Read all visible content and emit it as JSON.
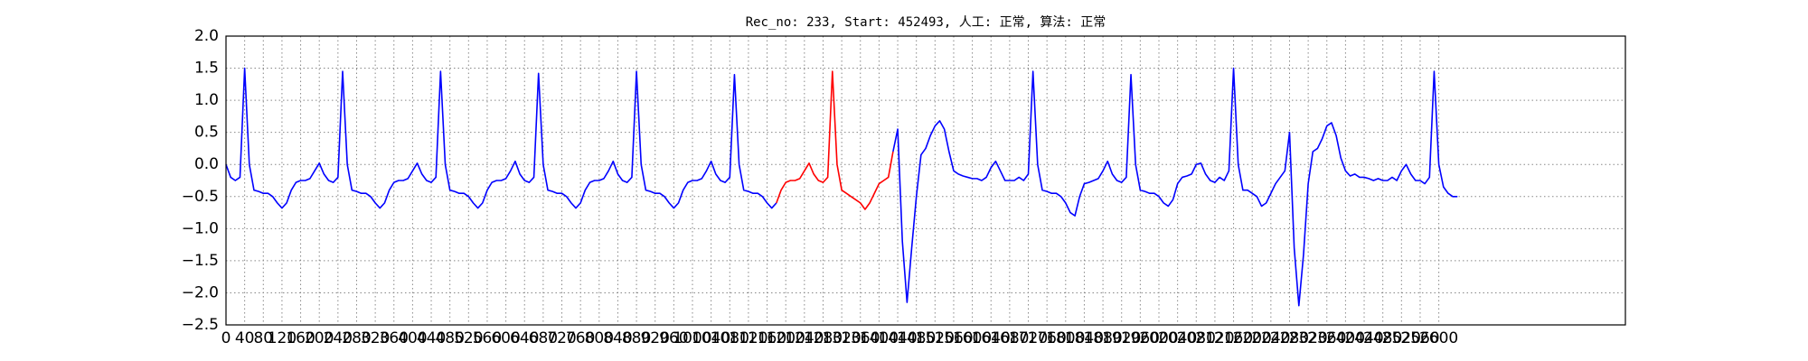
{
  "chart_data": {
    "type": "line",
    "title": "Rec_no: 233, Start: 452493, 人工: 正常, 算法: 正常",
    "x": [
      0,
      10,
      20,
      30,
      40,
      50,
      60,
      70,
      80,
      90,
      100,
      110,
      120,
      130,
      140,
      150,
      160,
      170,
      180,
      190,
      200,
      210,
      220,
      230,
      240,
      250,
      260,
      270,
      280,
      290,
      300,
      310,
      320,
      330,
      340,
      350,
      360,
      370,
      380,
      390,
      400,
      410,
      420,
      430,
      440,
      450,
      460,
      470,
      480,
      490,
      500,
      510,
      520,
      530,
      540,
      550,
      560,
      570,
      580,
      590,
      600,
      610,
      620,
      630,
      640,
      650,
      660,
      670,
      680,
      690,
      700,
      710,
      720,
      730,
      740,
      750,
      760,
      770,
      780,
      790,
      800,
      810,
      820,
      830,
      840,
      850,
      860,
      870,
      880,
      890,
      900,
      910,
      920,
      930,
      940,
      950,
      960,
      970,
      980,
      990,
      1000,
      1010,
      1020,
      1030,
      1040,
      1050,
      1060,
      1070,
      1080,
      1090,
      1100,
      1110,
      1120,
      1130,
      1140,
      1150,
      1160,
      1170,
      1180,
      1190,
      1200,
      1210,
      1220,
      1230,
      1240,
      1250,
      1260,
      1270,
      1280,
      1290,
      1300,
      1310,
      1320,
      1330,
      1340,
      1350,
      1360,
      1370,
      1380,
      1390,
      1400,
      1410,
      1420,
      1430,
      1440,
      1450,
      1460,
      1470,
      1480,
      1490,
      1500,
      1510,
      1520,
      1530,
      1540,
      1550,
      1560,
      1570,
      1580,
      1590,
      1600,
      1610,
      1620,
      1630,
      1640,
      1650,
      1660,
      1670,
      1680,
      1690,
      1700,
      1710,
      1720,
      1730,
      1740,
      1750,
      1760,
      1770,
      1780,
      1790,
      1800,
      1810,
      1820,
      1830,
      1840,
      1850,
      1860,
      1870,
      1880,
      1890,
      1900,
      1910,
      1920,
      1930,
      1940,
      1950,
      1960,
      1970,
      1980,
      1990,
      2000,
      2010,
      2020,
      2030,
      2040,
      2050,
      2060,
      2070,
      2080,
      2090,
      2100,
      2110,
      2120,
      2130,
      2140,
      2150,
      2160,
      2170,
      2180,
      2190,
      2200,
      2210,
      2220,
      2230,
      2240,
      2250,
      2260,
      2270,
      2280,
      2290,
      2300,
      2310,
      2320,
      2330,
      2340,
      2350,
      2360,
      2370,
      2380,
      2390,
      2400,
      2410,
      2420,
      2430,
      2440,
      2450,
      2460,
      2470,
      2480,
      2490,
      2500,
      2510,
      2520,
      2530,
      2540,
      2550,
      2560,
      2570,
      2580,
      2590,
      2600,
      2610,
      2620,
      2630,
      2640
    ],
    "series": [
      {
        "color": "#0000ff",
        "values": [
          0.0,
          -0.2,
          -0.25,
          -0.2,
          1.5,
          0.0,
          -0.4,
          -0.42,
          -0.45,
          -0.45,
          -0.5,
          -0.6,
          -0.68,
          -0.6,
          -0.4,
          -0.28,
          -0.25,
          -0.25,
          -0.22,
          -0.1,
          0.02,
          -0.15,
          -0.25,
          -0.28,
          -0.2,
          1.45,
          0.0,
          -0.4,
          -0.42,
          -0.45,
          -0.45,
          -0.5,
          -0.6,
          -0.68,
          -0.6,
          -0.4,
          -0.28,
          -0.25,
          -0.25,
          -0.22,
          -0.1,
          0.02,
          -0.15,
          -0.25,
          -0.28,
          -0.2,
          1.45,
          0.0,
          -0.4,
          -0.42,
          -0.45,
          -0.45,
          -0.5,
          -0.6,
          -0.68,
          -0.6,
          -0.4,
          -0.28,
          -0.25,
          -0.25,
          -0.22,
          -0.1,
          0.05,
          -0.15,
          -0.25,
          -0.28,
          -0.2,
          1.42,
          0.0,
          -0.4,
          -0.42,
          -0.45,
          -0.45,
          -0.5,
          -0.6,
          -0.68,
          -0.6,
          -0.4,
          -0.28,
          -0.25,
          -0.25,
          -0.22,
          -0.1,
          0.05,
          -0.15,
          -0.25,
          -0.28,
          -0.2,
          1.45,
          0.0,
          -0.4,
          -0.42,
          -0.45,
          -0.45,
          -0.5,
          -0.6,
          -0.68,
          -0.6,
          -0.4,
          -0.28,
          -0.25,
          -0.25,
          -0.22,
          -0.1,
          0.05,
          -0.15,
          -0.25,
          -0.28,
          -0.2,
          1.4,
          0.0,
          -0.4,
          -0.42,
          -0.45,
          -0.45,
          -0.5,
          -0.6,
          -0.68,
          -0.6,
          null,
          null,
          null,
          null,
          null,
          null,
          null,
          null,
          null,
          null,
          null,
          null,
          null,
          null,
          null,
          null,
          null,
          null,
          null,
          null,
          null,
          null,
          null,
          null,
          0.2,
          0.55,
          -1.2,
          -2.15,
          -1.3,
          -0.5,
          0.15,
          0.25,
          0.45,
          0.6,
          0.68,
          0.55,
          0.2,
          -0.1,
          -0.15,
          -0.18,
          -0.2,
          -0.22,
          -0.22,
          -0.25,
          -0.2,
          -0.05,
          0.05,
          -0.1,
          -0.25,
          -0.25,
          -0.25,
          -0.2,
          -0.25,
          -0.15,
          1.45,
          0.0,
          -0.4,
          -0.42,
          -0.45,
          -0.45,
          -0.5,
          -0.6,
          -0.75,
          -0.8,
          -0.5,
          -0.3,
          -0.28,
          -0.25,
          -0.22,
          -0.1,
          0.05,
          -0.15,
          -0.25,
          -0.28,
          -0.2,
          1.4,
          0.0,
          -0.4,
          -0.42,
          -0.45,
          -0.45,
          -0.5,
          -0.6,
          -0.65,
          -0.55,
          -0.3,
          -0.2,
          -0.18,
          -0.15,
          0.0,
          0.02,
          -0.15,
          -0.25,
          -0.28,
          -0.2,
          -0.25,
          -0.1,
          1.5,
          0.0,
          -0.4,
          -0.4,
          -0.45,
          -0.5,
          -0.65,
          -0.6,
          -0.45,
          -0.3,
          -0.2,
          -0.1,
          0.5,
          -1.3,
          -2.2,
          -1.4,
          -0.3,
          0.2,
          0.25,
          0.4,
          0.6,
          0.65,
          0.45,
          0.1,
          -0.1,
          -0.18,
          -0.15,
          -0.2,
          -0.2,
          -0.22,
          -0.25,
          -0.22,
          -0.25,
          -0.25,
          -0.2,
          -0.25,
          -0.1,
          0.0,
          -0.15,
          -0.25,
          -0.25,
          -0.3,
          -0.2,
          1.45,
          0.0,
          -0.35,
          -0.45,
          -0.5,
          -0.5
        ]
      },
      {
        "color": "#ff0000",
        "values": [
          null,
          null,
          null,
          null,
          null,
          null,
          null,
          null,
          null,
          null,
          null,
          null,
          null,
          null,
          null,
          null,
          null,
          null,
          null,
          null,
          null,
          null,
          null,
          null,
          null,
          null,
          null,
          null,
          null,
          null,
          null,
          null,
          null,
          null,
          null,
          null,
          null,
          null,
          null,
          null,
          null,
          null,
          null,
          null,
          null,
          null,
          null,
          null,
          null,
          null,
          null,
          null,
          null,
          null,
          null,
          null,
          null,
          null,
          null,
          null,
          null,
          null,
          null,
          null,
          null,
          null,
          null,
          null,
          null,
          null,
          null,
          null,
          null,
          null,
          null,
          null,
          null,
          null,
          null,
          null,
          null,
          null,
          null,
          null,
          null,
          null,
          null,
          null,
          null,
          null,
          null,
          null,
          null,
          null,
          null,
          null,
          null,
          null,
          null,
          null,
          null,
          null,
          null,
          null,
          null,
          null,
          null,
          null,
          null,
          null,
          null,
          null,
          null,
          null,
          null,
          null,
          null,
          null,
          -0.6,
          -0.4,
          -0.28,
          -0.25,
          -0.25,
          -0.22,
          -0.1,
          0.02,
          -0.15,
          -0.25,
          -0.28,
          -0.2,
          1.45,
          0.0,
          -0.4,
          -0.45,
          -0.5,
          -0.55,
          -0.6,
          -0.7,
          -0.6,
          -0.45,
          -0.3,
          -0.25,
          -0.2,
          0.2,
          null,
          null,
          null,
          null,
          null,
          null,
          null,
          null,
          null,
          null,
          null,
          null,
          null,
          null,
          null,
          null,
          null,
          null,
          null,
          null,
          null,
          null,
          null,
          null,
          null,
          null,
          null,
          null,
          null,
          null,
          null,
          null,
          null,
          null,
          null,
          null,
          null,
          null,
          null,
          null,
          null,
          null,
          null,
          null,
          null,
          null,
          null,
          null,
          null,
          null,
          null,
          null,
          null,
          null,
          null,
          null,
          null,
          null,
          null,
          null,
          null,
          null,
          null,
          null,
          null,
          null,
          null,
          null,
          null,
          null,
          null,
          null,
          null,
          null,
          null,
          null,
          null,
          null,
          null,
          null,
          null,
          null,
          null,
          null,
          null,
          null,
          null,
          null,
          null,
          null,
          null,
          null,
          null,
          null,
          null,
          null,
          null,
          null,
          null,
          null,
          null,
          null,
          null,
          null,
          null,
          null,
          null,
          null,
          null,
          null,
          null,
          null,
          null,
          null,
          null,
          null,
          null,
          null,
          null,
          null,
          null
        ]
      }
    ],
    "xlim": [
      0,
      3000
    ],
    "xticks": [
      0,
      40,
      80,
      120,
      160,
      200,
      240,
      280,
      320,
      360,
      400,
      440,
      480,
      520,
      560,
      600,
      640,
      680,
      720,
      760,
      800,
      840,
      880,
      920,
      960,
      1000,
      1040,
      1080,
      1120,
      1160,
      1200,
      1240,
      1280,
      1320,
      1360,
      1400,
      1440,
      1480,
      1520,
      1560,
      1600,
      1640,
      1680,
      1720,
      1760,
      1800,
      1840,
      1880,
      1920,
      1960,
      2000,
      2040,
      2080,
      2120,
      2160,
      2200,
      2240,
      2280,
      2320,
      2360,
      2400,
      2440,
      2480,
      2520,
      2560,
      2600
    ],
    "ylim": [
      -2.5,
      2.0
    ],
    "yticks": [
      {
        "value": -2.5,
        "label": "−2.5"
      },
      {
        "value": -2,
        "label": "−2.0"
      },
      {
        "value": -1.5,
        "label": "−1.5"
      },
      {
        "value": -1,
        "label": "−1.0"
      },
      {
        "value": -0.5,
        "label": "−0.5"
      },
      {
        "value": 0,
        "label": "0.0"
      },
      {
        "value": 0.5,
        "label": "0.5"
      },
      {
        "value": 1,
        "label": "1.0"
      },
      {
        "value": 1.5,
        "label": "1.5"
      },
      {
        "value": 2,
        "label": "2.0"
      }
    ],
    "grid": true
  }
}
